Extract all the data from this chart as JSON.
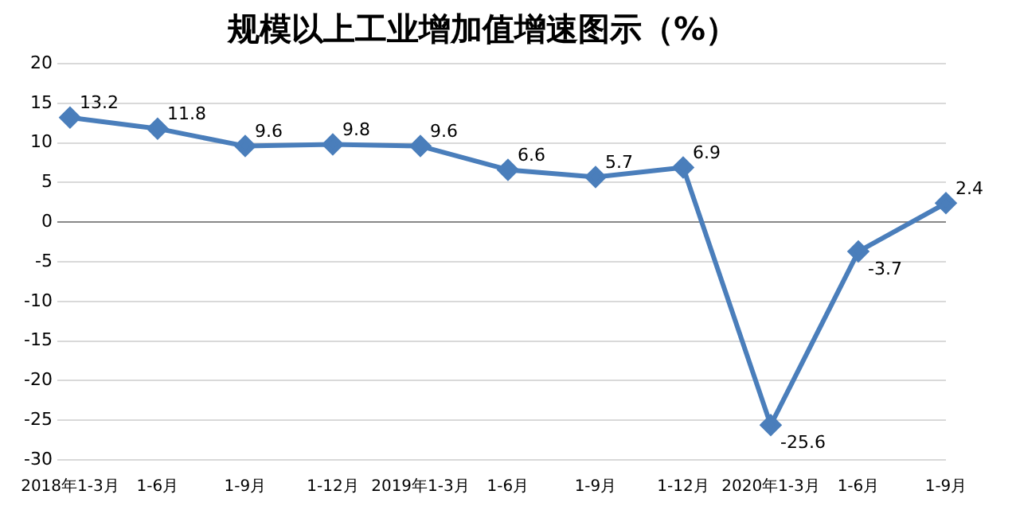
{
  "chart_data": {
    "type": "line",
    "title": "规模以上工业增加值增速图示（%）",
    "categories": [
      "2018年1-3月",
      "1-6月",
      "1-9月",
      "1-12月",
      "2019年1-3月",
      "1-6月",
      "1-9月",
      "1-12月",
      "2020年1-3月",
      "1-6月",
      "1-9月"
    ],
    "series": [
      {
        "color": "#4a7ebb",
        "values": [
          13.2,
          11.8,
          9.6,
          9.8,
          9.6,
          6.6,
          5.7,
          6.9,
          -25.6,
          -3.7,
          2.4
        ]
      }
    ],
    "ylim": [
      -30,
      20
    ],
    "yticks": [
      -30,
      -25,
      -20,
      -15,
      -10,
      -5,
      0,
      5,
      10,
      15,
      20
    ],
    "grid": "y",
    "legend": false,
    "marker": "diamond",
    "line_style": "solid",
    "data_labels": true
  }
}
